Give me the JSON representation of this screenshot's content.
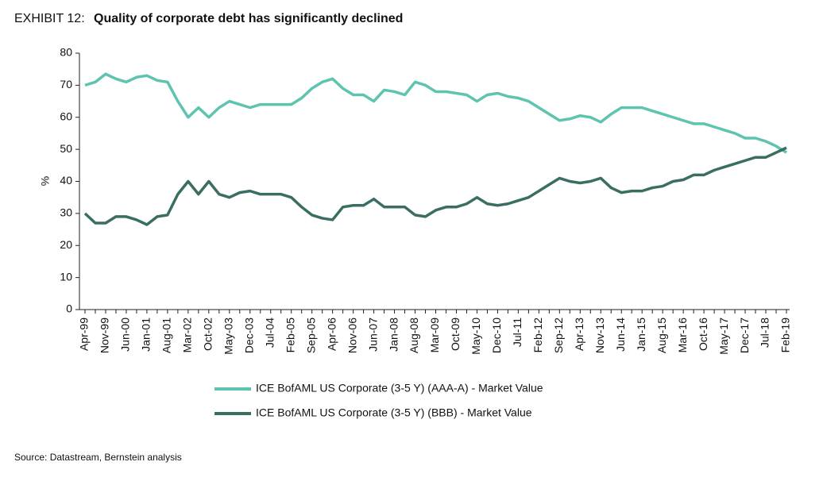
{
  "chart_data": {
    "type": "line",
    "exhibit": "EXHIBIT 12:",
    "title": "Quality of corporate debt has significantly declined",
    "ylabel": "%",
    "source": "Source: Datastream, Bernstein analysis",
    "categories": [
      "Apr-99",
      null,
      "Nov-99",
      null,
      "Jun-00",
      null,
      "Jan-01",
      null,
      "Aug-01",
      null,
      "Mar-02",
      null,
      "Oct-02",
      null,
      "May-03",
      null,
      "Dec-03",
      null,
      "Jul-04",
      null,
      "Feb-05",
      null,
      "Sep-05",
      null,
      "Apr-06",
      null,
      "Nov-06",
      null,
      "Jun-07",
      null,
      "Jan-08",
      null,
      "Aug-08",
      null,
      "Mar-09",
      null,
      "Oct-09",
      null,
      "May-10",
      null,
      "Dec-10",
      null,
      "Jul-11",
      null,
      "Feb-12",
      null,
      "Sep-12",
      null,
      "Apr-13",
      null,
      "Nov-13",
      null,
      "Jun-14",
      null,
      "Jan-15",
      null,
      "Aug-15",
      null,
      "Mar-16",
      null,
      "Oct-16",
      null,
      "May-17",
      null,
      "Dec-17",
      null,
      "Jul-18",
      null,
      "Feb-19"
    ],
    "series": [
      {
        "name": "ICE BofAML US Corporate (3-5 Y) (AAA-A) - Market Value",
        "color": "#5ec4b0",
        "values": [
          70,
          71,
          73.5,
          72,
          71,
          72.5,
          73,
          71.5,
          71,
          65,
          60,
          63,
          60,
          63,
          65,
          64,
          63,
          64,
          64,
          64,
          64,
          66,
          69,
          71,
          72,
          69,
          67,
          67,
          65,
          68.5,
          68,
          67,
          71,
          70,
          68,
          68,
          67.5,
          67,
          65,
          67,
          67.5,
          66.5,
          66,
          65,
          63,
          61,
          59,
          59.5,
          60.5,
          60,
          58.5,
          61,
          63,
          63,
          63,
          62,
          61,
          60,
          59,
          58,
          58,
          57,
          56,
          55,
          53.5,
          53.5,
          52.5,
          51,
          49
        ]
      },
      {
        "name": "ICE BofAML US Corporate (3-5 Y) (BBB) - Market Value",
        "color": "#3b6e63",
        "values": [
          30,
          27,
          27,
          29,
          29,
          28,
          26.5,
          29,
          29.5,
          36,
          40,
          36,
          40,
          36,
          35,
          36.5,
          37,
          36,
          36,
          36,
          35,
          32,
          29.5,
          28.5,
          28,
          32,
          32.5,
          32.5,
          34.5,
          32,
          32,
          32,
          29.5,
          29,
          31,
          32,
          32,
          33,
          35,
          33,
          32.5,
          33,
          34,
          35,
          37,
          39,
          41,
          40,
          39.5,
          40,
          41,
          38,
          36.5,
          37,
          37,
          38,
          38.5,
          40,
          40.5,
          42,
          42,
          43.5,
          44.5,
          45.5,
          46.5,
          47.5,
          47.5,
          49,
          50.5
        ]
      }
    ],
    "ylim": [
      0,
      80
    ],
    "yticks": [
      0,
      10,
      20,
      30,
      40,
      50,
      60,
      70,
      80
    ]
  }
}
